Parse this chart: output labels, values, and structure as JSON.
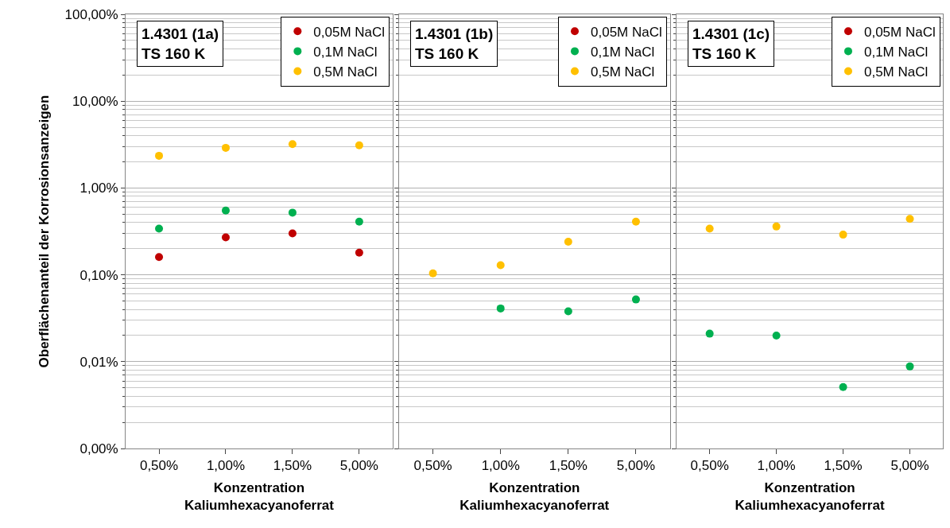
{
  "chart_data": [
    {
      "type": "scatter",
      "title": "1.4301 (1a)\nTS 160 K",
      "xlabel": "Konzentration\nKaliumhexacyanoferrat",
      "ylabel": "Oberflächenanteil der Korrosionsanzeigen",
      "categories": [
        "0,50%",
        "1,00%",
        "1,50%",
        "5,00%"
      ],
      "log": "y",
      "ylim": [
        0.001,
        100
      ],
      "yticks": [
        {
          "value": 0.001,
          "label": "0,00%"
        },
        {
          "value": 0.01,
          "label": "0,01%"
        },
        {
          "value": 0.1,
          "label": "0,10%"
        },
        {
          "value": 1,
          "label": "1,00%"
        },
        {
          "value": 10,
          "label": "10,00%"
        },
        {
          "value": 100,
          "label": "100,00%"
        }
      ],
      "grid": "y",
      "legend": "top right",
      "marker": "circle",
      "series": [
        {
          "name": "0,05M NaCl",
          "color": "#c00000",
          "values": [
            0.16,
            0.27,
            0.3,
            0.18
          ]
        },
        {
          "name": "0,1M NaCl",
          "color": "#00b050",
          "values": [
            0.34,
            0.55,
            0.52,
            0.41
          ]
        },
        {
          "name": "0,5M NaCl",
          "color": "#ffc000",
          "values": [
            2.35,
            2.9,
            3.2,
            3.1
          ]
        }
      ]
    },
    {
      "type": "scatter",
      "title": "1.4301 (1b)\nTS 160 K",
      "xlabel": "Konzentration\nKaliumhexacyanoferrat",
      "categories": [
        "0,50%",
        "1,00%",
        "1,50%",
        "5,00%"
      ],
      "log": "y",
      "ylim": [
        0.001,
        100
      ],
      "tick_labels": "x",
      "grid": "y",
      "legend": "top right",
      "marker": "circle",
      "series": [
        {
          "name": "0,05M NaCl",
          "color": "#c00000",
          "values": [
            null,
            null,
            null,
            null
          ]
        },
        {
          "name": "0,1M NaCl",
          "color": "#00b050",
          "values": [
            null,
            0.041,
            0.038,
            0.052
          ]
        },
        {
          "name": "0,5M NaCl",
          "color": "#ffc000",
          "values": [
            0.104,
            0.129,
            0.24,
            0.41
          ]
        }
      ]
    },
    {
      "type": "scatter",
      "title": "1.4301 (1c)\nTS 160 K",
      "xlabel": "Konzentration\nKaliumhexacyanoferrat",
      "categories": [
        "0,50%",
        "1,00%",
        "1,50%",
        "5,00%"
      ],
      "log": "y",
      "ylim": [
        0.001,
        100
      ],
      "tick_labels": "x",
      "grid": "y",
      "legend": "top right",
      "marker": "circle",
      "series": [
        {
          "name": "0,05M NaCl",
          "color": "#c00000",
          "values": [
            null,
            null,
            null,
            null
          ]
        },
        {
          "name": "0,1M NaCl",
          "color": "#00b050",
          "values": [
            0.021,
            0.02,
            0.0051,
            0.0088
          ]
        },
        {
          "name": "0,5M NaCl",
          "color": "#ffc000",
          "values": [
            0.34,
            0.36,
            0.29,
            0.44
          ]
        }
      ]
    }
  ]
}
